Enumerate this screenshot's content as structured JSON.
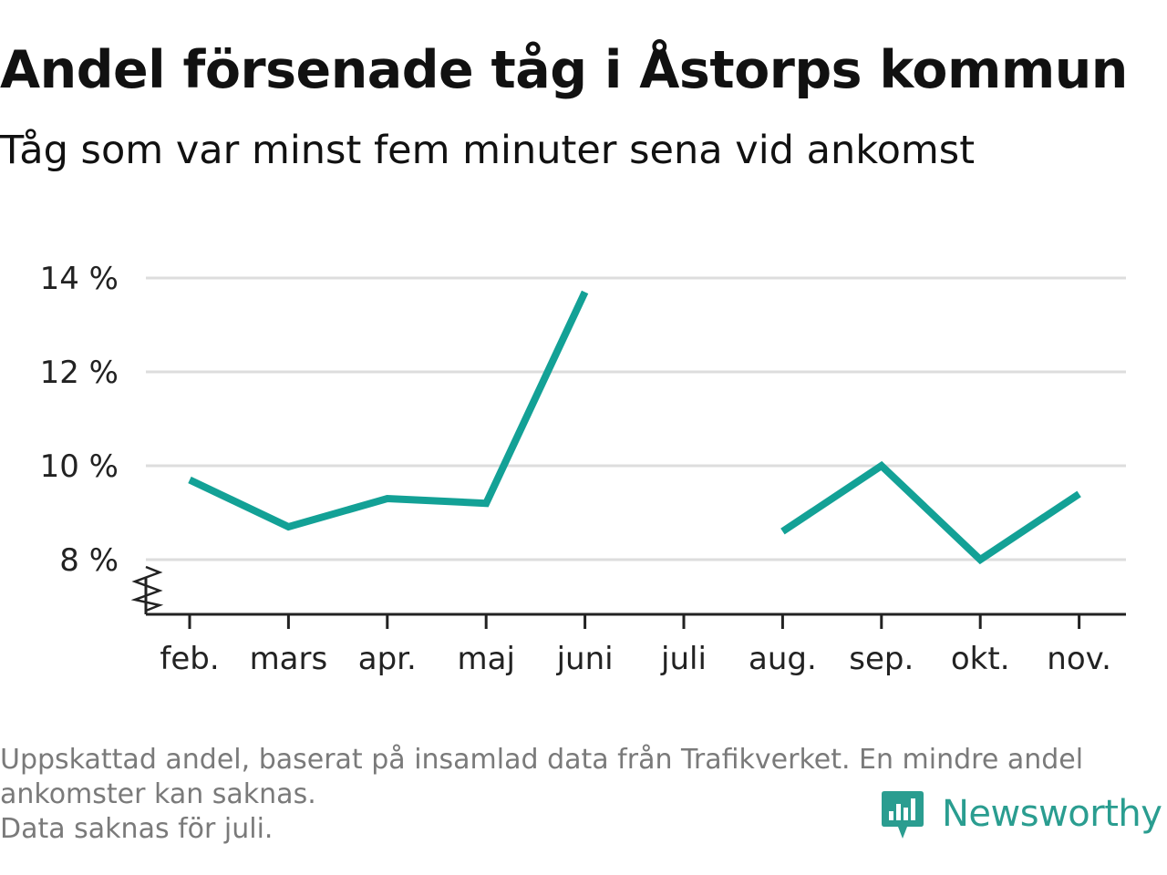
{
  "title": "Andel försenade tåg i Åstorps kommun",
  "subtitle": "Tåg som var minst fem minuter sena vid ankomst",
  "footnote": {
    "lines": [
      "Uppskattad andel, baserat på insamlad data från Trafikverket. En mindre andel",
      "ankomster kan saknas.",
      "Data saknas för juli."
    ]
  },
  "brand": {
    "name": "Newsworthy",
    "icon": "newsworthy-logo-icon",
    "color": "#2a9d90"
  },
  "colors": {
    "line": "#13a196",
    "grid": "#dddddd",
    "axis": "#222222"
  },
  "chart_data": {
    "type": "line",
    "categories": [
      "feb.",
      "mars",
      "apr.",
      "maj",
      "juni",
      "juli",
      "aug.",
      "sep.",
      "okt.",
      "nov."
    ],
    "series": [
      {
        "values": [
          9.7,
          8.7,
          9.3,
          9.2,
          13.7,
          null,
          8.6,
          10.0,
          8.0,
          9.4
        ]
      }
    ],
    "yticks": [
      8,
      10,
      12,
      14
    ],
    "ytick_labels": [
      "8 %",
      "10 %",
      "12 %",
      "14 %"
    ],
    "ylim": [
      6.8,
      14.0
    ],
    "y_axis_break": true,
    "grid": true,
    "xlabel": "",
    "ylabel": ""
  }
}
